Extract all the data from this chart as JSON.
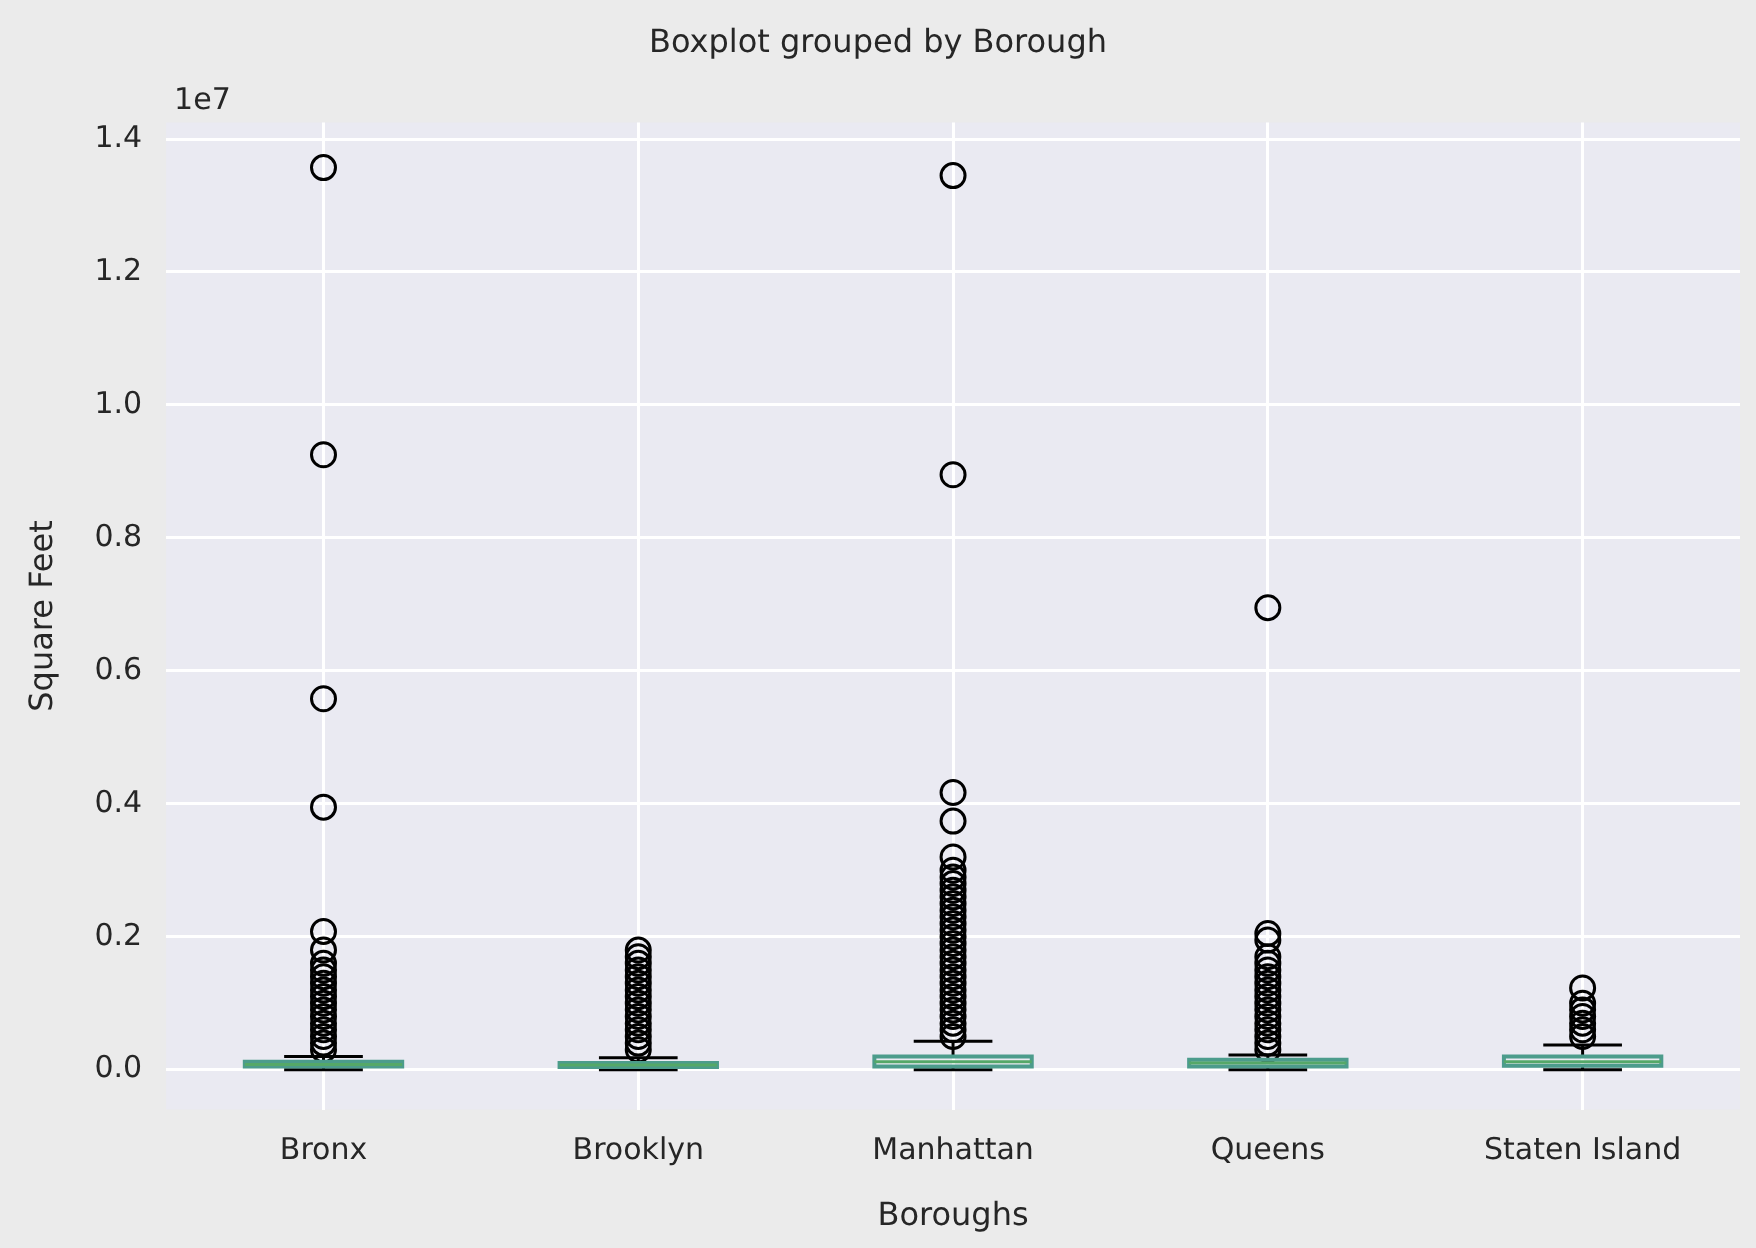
{
  "chart_data": {
    "type": "box",
    "title": "Boxplot grouped by Borough",
    "xlabel": "Boroughs",
    "ylabel": "Square Feet",
    "annotations": [
      "1e7"
    ],
    "categories": [
      "Bronx",
      "Brooklyn",
      "Manhattan",
      "Queens",
      "Staten Island"
    ],
    "color": "#4c9c8c",
    "boxes": [
      {
        "low": 0.0,
        "q1": 0.005,
        "median": 0.008,
        "q3": 0.012,
        "high": 0.02,
        "outliers": [
          1.357,
          0.925,
          0.558,
          0.395,
          0.208,
          0.18,
          0.16,
          0.15,
          0.14,
          0.13,
          0.12,
          0.11,
          0.1,
          0.09,
          0.08,
          0.07,
          0.06,
          0.05,
          0.04,
          0.03
        ]
      },
      {
        "low": 0.0,
        "q1": 0.004,
        "median": 0.007,
        "q3": 0.01,
        "high": 0.018,
        "outliers": [
          0.18,
          0.17,
          0.16,
          0.15,
          0.14,
          0.13,
          0.12,
          0.11,
          0.1,
          0.09,
          0.08,
          0.07,
          0.06,
          0.05,
          0.04,
          0.03
        ]
      },
      {
        "low": 0.0,
        "q1": 0.005,
        "median": 0.012,
        "q3": 0.02,
        "high": 0.043,
        "outliers": [
          1.345,
          0.895,
          0.417,
          0.374,
          0.32,
          0.3,
          0.29,
          0.28,
          0.27,
          0.26,
          0.25,
          0.24,
          0.23,
          0.22,
          0.21,
          0.2,
          0.19,
          0.18,
          0.17,
          0.16,
          0.15,
          0.14,
          0.13,
          0.12,
          0.11,
          0.1,
          0.09,
          0.08,
          0.07,
          0.06,
          0.05
        ]
      },
      {
        "low": 0.0,
        "q1": 0.005,
        "median": 0.01,
        "q3": 0.015,
        "high": 0.022,
        "outliers": [
          0.695,
          0.205,
          0.195,
          0.17,
          0.16,
          0.15,
          0.14,
          0.13,
          0.12,
          0.11,
          0.1,
          0.09,
          0.08,
          0.07,
          0.06,
          0.05,
          0.04,
          0.03
        ]
      },
      {
        "low": 0.0,
        "q1": 0.006,
        "median": 0.012,
        "q3": 0.02,
        "high": 0.037,
        "outliers": [
          0.123,
          0.1,
          0.09,
          0.08,
          0.07,
          0.06,
          0.05
        ]
      }
    ],
    "ylim": [
      -0.06,
      1.425
    ],
    "yticks": [
      {
        "value": 0,
        "label": "0.0"
      },
      0.2,
      0.4,
      0.6,
      0.8,
      {
        "value": 1,
        "label": "1.0"
      },
      1.2,
      1.4
    ],
    "grid": true,
    "legend": false
  }
}
